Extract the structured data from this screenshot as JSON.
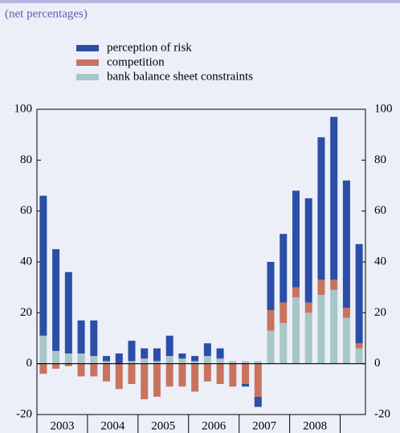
{
  "chart_data": {
    "type": "bar",
    "stacked": true,
    "subtitle": "(net percentages)",
    "categories": [
      "2003",
      null,
      null,
      null,
      "2004",
      null,
      null,
      null,
      "2005",
      null,
      null,
      null,
      "2006",
      null,
      null,
      null,
      "2007",
      null,
      null,
      null,
      "2008",
      null,
      null,
      null,
      null,
      null
    ],
    "series": [
      {
        "name": "bank balance sheet constraints",
        "color": "#a7c6c8",
        "values": [
          11,
          5,
          4,
          4,
          3,
          1,
          0,
          1,
          2,
          1,
          3,
          2,
          1,
          3,
          2,
          1,
          1,
          1,
          13,
          16,
          26,
          20,
          27,
          29,
          18,
          6
        ]
      },
      {
        "name": "competition",
        "color": "#c9735f",
        "values": [
          -4,
          -2,
          -1,
          -5,
          -5,
          -7,
          -10,
          -8,
          -14,
          -13,
          -9,
          -9,
          -11,
          -7,
          -8,
          -9,
          -8,
          -13,
          8,
          8,
          4,
          4,
          6,
          4,
          4,
          2
        ]
      },
      {
        "name": "perception of risk",
        "color": "#2b4ea6",
        "values": [
          55,
          40,
          32,
          13,
          14,
          2,
          4,
          8,
          4,
          5,
          8,
          2,
          2,
          5,
          4,
          0,
          -1,
          -4,
          19,
          27,
          38,
          41,
          56,
          64,
          50,
          39
        ]
      }
    ],
    "legend_order": [
      2,
      1,
      0
    ],
    "ylim": [
      -20,
      100
    ],
    "yticks": [
      -20,
      0,
      20,
      40,
      60,
      80,
      100
    ]
  }
}
